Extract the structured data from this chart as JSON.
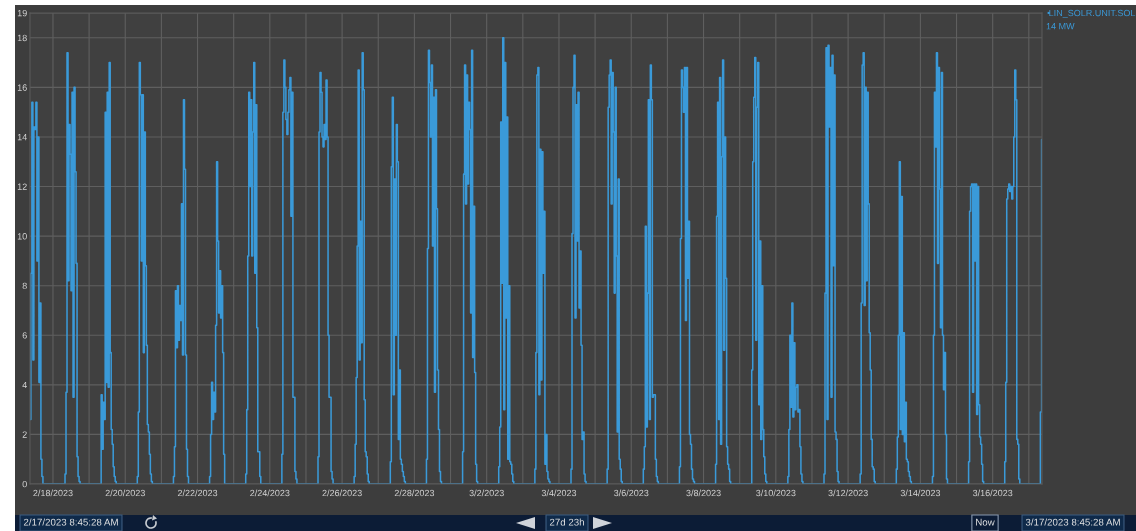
{
  "chart_data": {
    "type": "step",
    "xlim": [
      "2023-02-17T08:45",
      "2023-03-17T08:45"
    ],
    "ylim": [
      0,
      19
    ],
    "yticks": [
      0,
      2,
      4,
      6,
      8,
      10,
      12,
      14,
      16,
      18,
      19
    ],
    "xticks": [
      {
        "value": "2023-02-18",
        "label": "2/18/2023"
      },
      {
        "value": "2023-02-19",
        "label": null
      },
      {
        "value": "2023-02-20",
        "label": "2/20/2023"
      },
      {
        "value": "2023-02-21",
        "label": null
      },
      {
        "value": "2023-02-22",
        "label": "2/22/2023"
      },
      {
        "value": "2023-02-23",
        "label": null
      },
      {
        "value": "2023-02-24",
        "label": "2/24/2023"
      },
      {
        "value": "2023-02-25",
        "label": null
      },
      {
        "value": "2023-02-26",
        "label": "2/26/2023"
      },
      {
        "value": "2023-02-27",
        "label": null
      },
      {
        "value": "2023-02-28",
        "label": "2/28/2023"
      },
      {
        "value": "2023-03-01",
        "label": null
      },
      {
        "value": "2023-03-02",
        "label": "3/2/2023"
      },
      {
        "value": "2023-03-03",
        "label": null
      },
      {
        "value": "2023-03-04",
        "label": "3/4/2023"
      },
      {
        "value": "2023-03-05",
        "label": null
      },
      {
        "value": "2023-03-06",
        "label": "3/6/2023"
      },
      {
        "value": "2023-03-07",
        "label": null
      },
      {
        "value": "2023-03-08",
        "label": "3/8/2023"
      },
      {
        "value": "2023-03-09",
        "label": null
      },
      {
        "value": "2023-03-10",
        "label": "3/10/2023"
      },
      {
        "value": "2023-03-11",
        "label": null
      },
      {
        "value": "2023-03-12",
        "label": "3/12/2023"
      },
      {
        "value": "2023-03-13",
        "label": null
      },
      {
        "value": "2023-03-14",
        "label": "3/14/2023"
      },
      {
        "value": "2023-03-15",
        "label": null
      },
      {
        "value": "2023-03-16",
        "label": "3/16/2023"
      },
      {
        "value": "2023-03-17",
        "label": null
      }
    ],
    "grid": true,
    "legend": "top right",
    "annotations": [
      "14 MW",
      "2/17/2023 8:45:28 AM",
      "27d 23h",
      "Now",
      "3/17/2023 8:45:28 AM"
    ],
    "series": [
      {
        "name": "LIN_SOLR.UNIT.SOL",
        "color": "#3a9ad9",
        "x": [
          "2023-02-17T08:45",
          "2023-02-17T09:20",
          "2023-02-17T10:00",
          "2023-02-17T10:40",
          "2023-02-17T11:20",
          "2023-02-17T12:00",
          "2023-02-17T12:40",
          "2023-02-17T13:20",
          "2023-02-17T14:00",
          "2023-02-17T14:40",
          "2023-02-17T15:20",
          "2023-02-17T16:00",
          "2023-02-17T16:40",
          "2023-02-17T17:20",
          "2023-02-18T07:40",
          "2023-02-18T08:00",
          "2023-02-18T08:40",
          "2023-02-18T09:20",
          "2023-02-18T10:00",
          "2023-02-18T10:40",
          "2023-02-18T11:20",
          "2023-02-18T12:00",
          "2023-02-18T12:40",
          "2023-02-18T13:20",
          "2023-02-18T14:00",
          "2023-02-18T14:40",
          "2023-02-18T15:20",
          "2023-02-18T16:00",
          "2023-02-18T16:40",
          "2023-02-18T17:20",
          "2023-02-18T18:00",
          "2023-02-19T07:40",
          "2023-02-19T08:00",
          "2023-02-19T08:40",
          "2023-02-19T09:20",
          "2023-02-19T10:00",
          "2023-02-19T10:40",
          "2023-02-19T11:20",
          "2023-02-19T12:00",
          "2023-02-19T12:40",
          "2023-02-19T13:20",
          "2023-02-19T14:00",
          "2023-02-19T14:40",
          "2023-02-19T15:20",
          "2023-02-19T16:00",
          "2023-02-19T16:40",
          "2023-02-19T17:20",
          "2023-02-19T18:00",
          "2023-02-20T07:40",
          "2023-02-20T08:00",
          "2023-02-20T08:40",
          "2023-02-20T09:20",
          "2023-02-20T10:00",
          "2023-02-20T10:40",
          "2023-02-20T11:20",
          "2023-02-20T12:00",
          "2023-02-20T12:40",
          "2023-02-20T13:20",
          "2023-02-20T14:00",
          "2023-02-20T14:40",
          "2023-02-20T15:20",
          "2023-02-20T16:00",
          "2023-02-20T16:40",
          "2023-02-20T17:20",
          "2023-02-20T18:00",
          "2023-02-21T07:40",
          "2023-02-21T08:00",
          "2023-02-21T08:40",
          "2023-02-21T09:20",
          "2023-02-21T10:00",
          "2023-02-21T10:40",
          "2023-02-21T11:20",
          "2023-02-21T12:00",
          "2023-02-21T12:40",
          "2023-02-21T13:20",
          "2023-02-21T14:00",
          "2023-02-21T14:40",
          "2023-02-21T15:20",
          "2023-02-21T16:00",
          "2023-02-21T16:40",
          "2023-02-21T17:20",
          "2023-02-21T18:00",
          "2023-02-22T07:40",
          "2023-02-22T08:00",
          "2023-02-22T08:40",
          "2023-02-22T09:20",
          "2023-02-22T10:00",
          "2023-02-22T10:40",
          "2023-02-22T11:20",
          "2023-02-22T12:00",
          "2023-02-22T12:40",
          "2023-02-22T13:20",
          "2023-02-22T14:00",
          "2023-02-22T14:40",
          "2023-02-22T15:20",
          "2023-02-22T16:00",
          "2023-02-22T16:40",
          "2023-02-22T17:20",
          "2023-02-22T18:00",
          "2023-02-23T07:40",
          "2023-02-23T08:00",
          "2023-02-23T08:40",
          "2023-02-23T09:20",
          "2023-02-23T10:00",
          "2023-02-23T10:40",
          "2023-02-23T11:20",
          "2023-02-23T12:00",
          "2023-02-23T12:40",
          "2023-02-23T13:20",
          "2023-02-23T14:00",
          "2023-02-23T14:40",
          "2023-02-23T15:20",
          "2023-02-23T16:00",
          "2023-02-23T16:40",
          "2023-02-23T17:20",
          "2023-02-23T18:00",
          "2023-02-24T07:40",
          "2023-02-24T08:00",
          "2023-02-24T08:40",
          "2023-02-24T09:20",
          "2023-02-24T10:00",
          "2023-02-24T10:40",
          "2023-02-24T11:20",
          "2023-02-24T12:00",
          "2023-02-24T12:40",
          "2023-02-24T13:20",
          "2023-02-24T14:00",
          "2023-02-24T14:40",
          "2023-02-24T15:20",
          "2023-02-24T16:00",
          "2023-02-24T16:40",
          "2023-02-24T17:20",
          "2023-02-24T18:00",
          "2023-02-25T07:40",
          "2023-02-25T08:00",
          "2023-02-25T08:40",
          "2023-02-25T09:20",
          "2023-02-25T10:00",
          "2023-02-25T10:40",
          "2023-02-25T11:20",
          "2023-02-25T12:00",
          "2023-02-25T12:40",
          "2023-02-25T13:20",
          "2023-02-25T14:00",
          "2023-02-25T14:40",
          "2023-02-25T15:20",
          "2023-02-25T16:00",
          "2023-02-25T16:40",
          "2023-02-25T17:20",
          "2023-02-25T18:00",
          "2023-02-26T07:40",
          "2023-02-26T08:00",
          "2023-02-26T08:40",
          "2023-02-26T09:20",
          "2023-02-26T10:00",
          "2023-02-26T10:40",
          "2023-02-26T11:20",
          "2023-02-26T12:00",
          "2023-02-26T12:40",
          "2023-02-26T13:20",
          "2023-02-26T14:00",
          "2023-02-26T14:40",
          "2023-02-26T15:20",
          "2023-02-26T16:00",
          "2023-02-26T16:40",
          "2023-02-26T17:20",
          "2023-02-26T18:00",
          "2023-02-27T07:40",
          "2023-02-27T08:00",
          "2023-02-27T08:40",
          "2023-02-27T09:20",
          "2023-02-27T10:00",
          "2023-02-27T10:40",
          "2023-02-27T11:20",
          "2023-02-27T12:00",
          "2023-02-27T12:40",
          "2023-02-27T13:20",
          "2023-02-27T14:00",
          "2023-02-27T14:40",
          "2023-02-27T15:20",
          "2023-02-27T16:00",
          "2023-02-27T16:40",
          "2023-02-27T17:20",
          "2023-02-27T18:00",
          "2023-02-28T07:40",
          "2023-02-28T08:00",
          "2023-02-28T08:40",
          "2023-02-28T09:20",
          "2023-02-28T10:00",
          "2023-02-28T10:40",
          "2023-02-28T11:20",
          "2023-02-28T12:00",
          "2023-02-28T12:40",
          "2023-02-28T13:20",
          "2023-02-28T14:00",
          "2023-02-28T14:40",
          "2023-02-28T15:20",
          "2023-02-28T16:00",
          "2023-02-28T16:40",
          "2023-02-28T17:20",
          "2023-02-28T18:00",
          "2023-03-01T07:40",
          "2023-03-01T08:00",
          "2023-03-01T08:40",
          "2023-03-01T09:20",
          "2023-03-01T10:00",
          "2023-03-01T10:40",
          "2023-03-01T11:20",
          "2023-03-01T12:00",
          "2023-03-01T12:40",
          "2023-03-01T13:20",
          "2023-03-01T14:00",
          "2023-03-01T14:40",
          "2023-03-01T15:20",
          "2023-03-01T16:00",
          "2023-03-01T16:40",
          "2023-03-01T17:20",
          "2023-03-01T18:00",
          "2023-03-02T07:40",
          "2023-03-02T08:00",
          "2023-03-02T08:40",
          "2023-03-02T09:20",
          "2023-03-02T10:00",
          "2023-03-02T10:40",
          "2023-03-02T11:20",
          "2023-03-02T12:00",
          "2023-03-02T12:40",
          "2023-03-02T13:20",
          "2023-03-02T14:00",
          "2023-03-02T14:40",
          "2023-03-02T15:20",
          "2023-03-02T16:00",
          "2023-03-02T16:40",
          "2023-03-02T17:20",
          "2023-03-02T18:00",
          "2023-03-03T07:40",
          "2023-03-03T08:00",
          "2023-03-03T08:40",
          "2023-03-03T09:20",
          "2023-03-03T10:00",
          "2023-03-03T10:40",
          "2023-03-03T11:20",
          "2023-03-03T12:00",
          "2023-03-03T12:40",
          "2023-03-03T13:20",
          "2023-03-03T14:00",
          "2023-03-03T14:40",
          "2023-03-03T15:20",
          "2023-03-03T16:00",
          "2023-03-03T16:40",
          "2023-03-03T17:20",
          "2023-03-03T18:00",
          "2023-03-04T07:40",
          "2023-03-04T08:00",
          "2023-03-04T08:40",
          "2023-03-04T09:20",
          "2023-03-04T10:00",
          "2023-03-04T10:40",
          "2023-03-04T11:20",
          "2023-03-04T12:00",
          "2023-03-04T12:40",
          "2023-03-04T13:20",
          "2023-03-04T14:00",
          "2023-03-04T14:40",
          "2023-03-04T15:20",
          "2023-03-04T16:00",
          "2023-03-04T16:40",
          "2023-03-04T17:20",
          "2023-03-04T18:00",
          "2023-03-05T07:40",
          "2023-03-05T08:00",
          "2023-03-05T08:40",
          "2023-03-05T09:20",
          "2023-03-05T10:00",
          "2023-03-05T10:40",
          "2023-03-05T11:20",
          "2023-03-05T12:00",
          "2023-03-05T12:40",
          "2023-03-05T13:20",
          "2023-03-05T14:00",
          "2023-03-05T14:40",
          "2023-03-05T15:20",
          "2023-03-05T16:00",
          "2023-03-05T16:40",
          "2023-03-05T17:20",
          "2023-03-05T18:00",
          "2023-03-06T07:40",
          "2023-03-06T08:00",
          "2023-03-06T08:40",
          "2023-03-06T09:20",
          "2023-03-06T10:00",
          "2023-03-06T10:40",
          "2023-03-06T11:20",
          "2023-03-06T12:00",
          "2023-03-06T12:40",
          "2023-03-06T13:20",
          "2023-03-06T14:00",
          "2023-03-06T14:40",
          "2023-03-06T15:20",
          "2023-03-06T16:00",
          "2023-03-06T16:40",
          "2023-03-06T17:20",
          "2023-03-06T18:00",
          "2023-03-07T07:40",
          "2023-03-07T08:00",
          "2023-03-07T08:40",
          "2023-03-07T09:20",
          "2023-03-07T10:00",
          "2023-03-07T10:40",
          "2023-03-07T11:20",
          "2023-03-07T12:00",
          "2023-03-07T12:40",
          "2023-03-07T13:20",
          "2023-03-07T14:00",
          "2023-03-07T14:40",
          "2023-03-07T15:20",
          "2023-03-07T16:00",
          "2023-03-07T16:40",
          "2023-03-07T17:20",
          "2023-03-07T18:00",
          "2023-03-08T07:40",
          "2023-03-08T08:00",
          "2023-03-08T08:40",
          "2023-03-08T09:20",
          "2023-03-08T10:00",
          "2023-03-08T10:40",
          "2023-03-08T11:20",
          "2023-03-08T12:00",
          "2023-03-08T12:40",
          "2023-03-08T13:20",
          "2023-03-08T14:00",
          "2023-03-08T14:40",
          "2023-03-08T15:20",
          "2023-03-08T16:00",
          "2023-03-08T16:40",
          "2023-03-08T17:20",
          "2023-03-08T18:00",
          "2023-03-09T07:40",
          "2023-03-09T08:00",
          "2023-03-09T08:40",
          "2023-03-09T09:20",
          "2023-03-09T10:00",
          "2023-03-09T10:40",
          "2023-03-09T11:20",
          "2023-03-09T12:00",
          "2023-03-09T12:40",
          "2023-03-09T13:20",
          "2023-03-09T14:00",
          "2023-03-09T14:40",
          "2023-03-09T15:20",
          "2023-03-09T16:00",
          "2023-03-09T16:40",
          "2023-03-09T17:20",
          "2023-03-09T18:00",
          "2023-03-10T07:40",
          "2023-03-10T08:00",
          "2023-03-10T08:40",
          "2023-03-10T09:20",
          "2023-03-10T10:00",
          "2023-03-10T10:40",
          "2023-03-10T11:20",
          "2023-03-10T12:00",
          "2023-03-10T12:40",
          "2023-03-10T13:20",
          "2023-03-10T14:00",
          "2023-03-10T14:40",
          "2023-03-10T15:20",
          "2023-03-10T16:00",
          "2023-03-10T16:40",
          "2023-03-10T17:20",
          "2023-03-10T18:00",
          "2023-03-11T07:40",
          "2023-03-11T08:00",
          "2023-03-11T08:40",
          "2023-03-11T09:20",
          "2023-03-11T10:00",
          "2023-03-11T10:40",
          "2023-03-11T11:20",
          "2023-03-11T12:00",
          "2023-03-11T12:40",
          "2023-03-11T13:20",
          "2023-03-11T14:00",
          "2023-03-11T14:40",
          "2023-03-11T15:20",
          "2023-03-11T16:00",
          "2023-03-11T16:40",
          "2023-03-11T17:20",
          "2023-03-11T18:00",
          "2023-03-12T07:40",
          "2023-03-12T08:00",
          "2023-03-12T08:40",
          "2023-03-12T09:20",
          "2023-03-12T10:00",
          "2023-03-12T10:40",
          "2023-03-12T11:20",
          "2023-03-12T12:00",
          "2023-03-12T12:40",
          "2023-03-12T13:20",
          "2023-03-12T14:00",
          "2023-03-12T14:40",
          "2023-03-12T15:20",
          "2023-03-12T16:00",
          "2023-03-12T16:40",
          "2023-03-12T17:20",
          "2023-03-12T18:00",
          "2023-03-13T07:40",
          "2023-03-13T08:00",
          "2023-03-13T08:40",
          "2023-03-13T09:20",
          "2023-03-13T10:00",
          "2023-03-13T10:40",
          "2023-03-13T11:20",
          "2023-03-13T12:00",
          "2023-03-13T12:40",
          "2023-03-13T13:20",
          "2023-03-13T14:00",
          "2023-03-13T14:40",
          "2023-03-13T15:20",
          "2023-03-13T16:00",
          "2023-03-13T16:40",
          "2023-03-13T17:20",
          "2023-03-13T18:00",
          "2023-03-14T07:40",
          "2023-03-14T08:00",
          "2023-03-14T08:40",
          "2023-03-14T09:20",
          "2023-03-14T10:00",
          "2023-03-14T10:40",
          "2023-03-14T11:20",
          "2023-03-14T12:00",
          "2023-03-14T12:40",
          "2023-03-14T13:20",
          "2023-03-14T14:00",
          "2023-03-14T14:40",
          "2023-03-14T15:20",
          "2023-03-14T16:00",
          "2023-03-14T16:40",
          "2023-03-14T17:20",
          "2023-03-14T18:00",
          "2023-03-15T07:40",
          "2023-03-15T08:00",
          "2023-03-15T08:40",
          "2023-03-15T09:20",
          "2023-03-15T10:00",
          "2023-03-15T10:40",
          "2023-03-15T11:20",
          "2023-03-15T12:00",
          "2023-03-15T12:40",
          "2023-03-15T13:20",
          "2023-03-15T14:00",
          "2023-03-15T14:40",
          "2023-03-15T15:20",
          "2023-03-15T16:00",
          "2023-03-15T16:40",
          "2023-03-15T17:20",
          "2023-03-15T18:00",
          "2023-03-16T07:40",
          "2023-03-16T08:00",
          "2023-03-16T08:40",
          "2023-03-16T09:20",
          "2023-03-16T10:00",
          "2023-03-16T10:40",
          "2023-03-16T11:20",
          "2023-03-16T12:00",
          "2023-03-16T12:40",
          "2023-03-16T13:20",
          "2023-03-16T14:00",
          "2023-03-16T14:40",
          "2023-03-16T15:20",
          "2023-03-16T16:00",
          "2023-03-16T16:40",
          "2023-03-16T17:20",
          "2023-03-16T18:00",
          "2023-03-17T07:20",
          "2023-03-17T07:40",
          "2023-03-17T08:30",
          "2023-03-17T08:45"
        ],
        "values": [
          2.6,
          8.5,
          15.4,
          5,
          14.4,
          14.3,
          15.4,
          9,
          14,
          4.1,
          7.3,
          1.0,
          0.3,
          0,
          0,
          0.4,
          3.7,
          17.4,
          8.2,
          14.5,
          13.3,
          7.8,
          15.8,
          3.5,
          16.0,
          12.6,
          8.9,
          1.1,
          0.3,
          0.1,
          0,
          0,
          3.6,
          1.4,
          3.3,
          2.6,
          15.0,
          4.1,
          15.8,
          3.9,
          17.0,
          5.3,
          2.2,
          1.6,
          0.7,
          0.3,
          0.1,
          0,
          0,
          0.3,
          2.9,
          17.0,
          15.7,
          9.0,
          15.7,
          5.3,
          14.2,
          8.8,
          5.6,
          2.4,
          2.1,
          1.2,
          0.4,
          0.1,
          0,
          0,
          0.3,
          1.5,
          7.8,
          5.5,
          8.0,
          5.8,
          7.2,
          6.6,
          11.3,
          5.2,
          15.5,
          12.7,
          5.2,
          1.4,
          0.3,
          0,
          0,
          0.3,
          2.0,
          4.1,
          2.6,
          3.7,
          2.9,
          6.4,
          13.0,
          9.8,
          6.9,
          8.6,
          6.7,
          8.0,
          5.3,
          1.2,
          0,
          0,
          0.4,
          3.0,
          9.2,
          15.8,
          12.0,
          15.5,
          9.2,
          14.2,
          17.0,
          8.5,
          15.3,
          6.3,
          1.3,
          1.3,
          0.3,
          0,
          0,
          1.2,
          15.0,
          17.1,
          16.0,
          14.7,
          14.1,
          15.0,
          15.9,
          16.4,
          10.8,
          15.8,
          3.5,
          3.5,
          0.5,
          0.2,
          0,
          0,
          1.1,
          14.2,
          16.6,
          15.8,
          14.0,
          13.6,
          14.5,
          13.9,
          16.3,
          14.0,
          6.0,
          3.5,
          3.5,
          0.5,
          0.2,
          0,
          0,
          0.3,
          1.6,
          4.3,
          9.6,
          16.7,
          5.0,
          10.6,
          5.7,
          17.4,
          15.9,
          3.4,
          1.3,
          1.1,
          0.4,
          0.1,
          0,
          0,
          0.9,
          12.8,
          15.6,
          3.6,
          12.3,
          6.0,
          14.5,
          13.0,
          1.8,
          4.6,
          1.0,
          0.8,
          0.5,
          0.3,
          0.1,
          0,
          0,
          1.0,
          9.5,
          17.5,
          16.2,
          14.0,
          16.9,
          9.6,
          15.6,
          3.7,
          15.9,
          11.1,
          4.6,
          2.2,
          0.5,
          0.1,
          0,
          0,
          1.3,
          12.5,
          16.9,
          11.3,
          16.5,
          12.1,
          15.4,
          14.3,
          6.9,
          17.5,
          5.1,
          11.2,
          4.5,
          0.8,
          0.1,
          0,
          0,
          0.7,
          2.3,
          14.6,
          8.1,
          18.0,
          3.0,
          17.0,
          6.7,
          14.8,
          1.0,
          8.0,
          0.9,
          0.8,
          0.4,
          0.1,
          0,
          0,
          0.6,
          5.3,
          16.5,
          16.8,
          3.6,
          13.5,
          4.2,
          13.4,
          8.5,
          11.0,
          0.8,
          2.0,
          0.5,
          0.2,
          0.1,
          0,
          0,
          0.6,
          10.1,
          16.0,
          17.3,
          6.7,
          15.3,
          9.8,
          15.8,
          7.1,
          9.4,
          5.6,
          1.8,
          2.1,
          0.4,
          0.1,
          0,
          0,
          0.6,
          15.2,
          16.5,
          17.1,
          11.3,
          16.6,
          14.2,
          7.7,
          16.0,
          9.2,
          2.1,
          12.3,
          1.0,
          0.6,
          0.1,
          0,
          0,
          0.6,
          1.5,
          10.4,
          2.3,
          7.7,
          15.5,
          2.6,
          16.9,
          15.5,
          3.5,
          3.6,
          3.6,
          1.0,
          0.3,
          0.1,
          0,
          0,
          0.7,
          9.9,
          16.7,
          16.0,
          15.0,
          16.8,
          6.6,
          16.8,
          8.3,
          10.6,
          2.0,
          1.6,
          0.6,
          0.2,
          0.1,
          0,
          0,
          0.8,
          10.8,
          15.4,
          2.6,
          16.4,
          1.6,
          13.2,
          17.1,
          5.4,
          14.0,
          8.3,
          1.5,
          0.8,
          0.6,
          0.1,
          0,
          0,
          4.6,
          13.0,
          15.6,
          17.2,
          5.8,
          15.2,
          17.0,
          3.2,
          9.8,
          1.8,
          8.0,
          2.2,
          1.1,
          0.4,
          0.1,
          0,
          0,
          0.3,
          2.2,
          6.0,
          3.1,
          7.3,
          2.7,
          5.7,
          3.0,
          3.9,
          4.0,
          2.9,
          3.0,
          1.5,
          0.4,
          0.1,
          0,
          0,
          0.4,
          7.7,
          17.6,
          2.6,
          17.7,
          14.4,
          16.8,
          3.5,
          17.3,
          8.8,
          16.5,
          2.1,
          1.8,
          0.5,
          0.1,
          0,
          0,
          0.4,
          7.3,
          16.9,
          17.4,
          7.2,
          16.0,
          8.2,
          15.8,
          11.3,
          6.1,
          4.6,
          1.8,
          0.7,
          0.6,
          0.1,
          0,
          0,
          0.6,
          1.9,
          6.0,
          13.0,
          2.2,
          11.6,
          2.0,
          6.1,
          1.7,
          3.3,
          1.0,
          0.9,
          0.5,
          0.3,
          0.1,
          0,
          0,
          0.3,
          6.0,
          15.8,
          13.6,
          17.4,
          8.9,
          16.8,
          11.9,
          6.3,
          16.6,
          6.0,
          3.8,
          5.3,
          2.0,
          0.2,
          0,
          0,
          0.9,
          11.0,
          12.0,
          12.1,
          3.7,
          12.1,
          9.0,
          12.1,
          2.8,
          12.0,
          3.2,
          1.9,
          1.6,
          0.8,
          0.1,
          0,
          0,
          0.9,
          4.1,
          11.5,
          11.9,
          12.1,
          11.8,
          12.0,
          11.5,
          12.0,
          14.0,
          16.7,
          15.5,
          1.8,
          1.6,
          0.2,
          0,
          0,
          2.9,
          13.9,
          13.9
        ]
      }
    ]
  }
}
